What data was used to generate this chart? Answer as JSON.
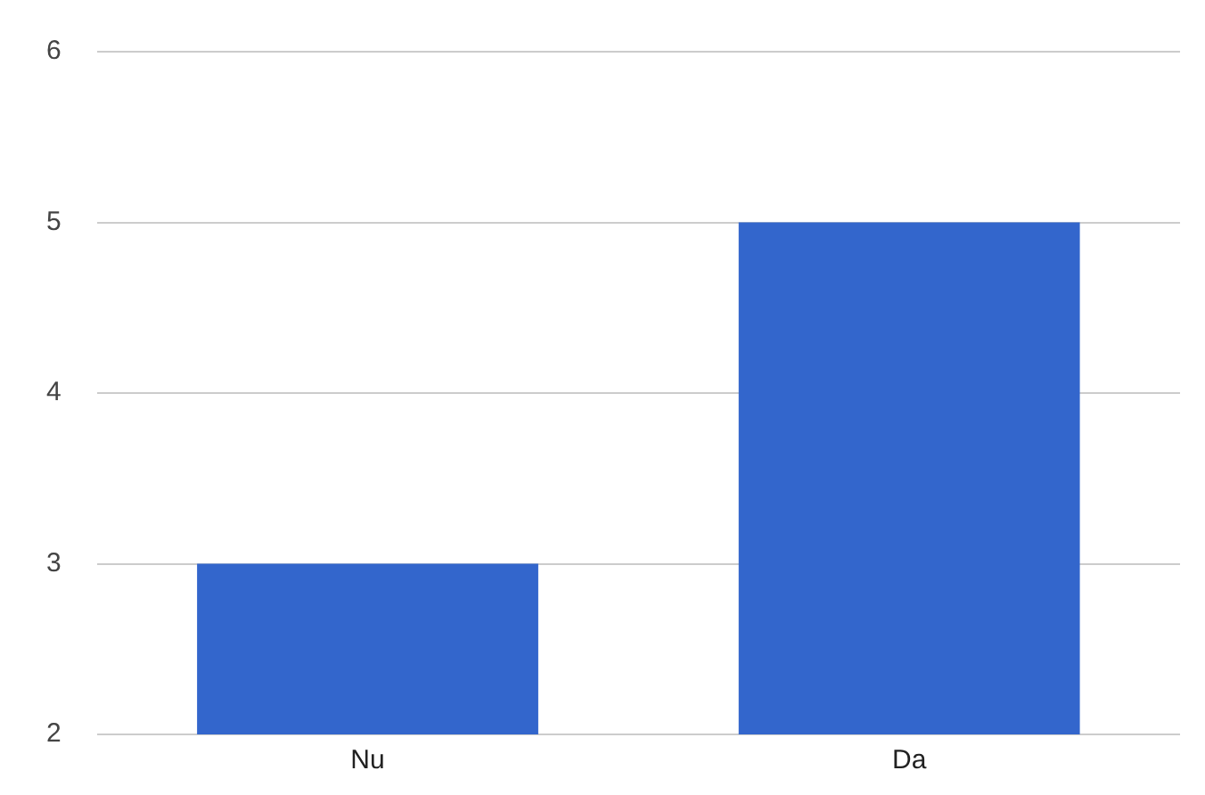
{
  "chart_data": {
    "type": "bar",
    "categories": [
      "Nu",
      "Da"
    ],
    "values": [
      3,
      5
    ],
    "color": "#3366cc",
    "ylim": [
      2,
      6
    ],
    "yticks": [
      2,
      3,
      4,
      5,
      6
    ],
    "grid": "y"
  }
}
